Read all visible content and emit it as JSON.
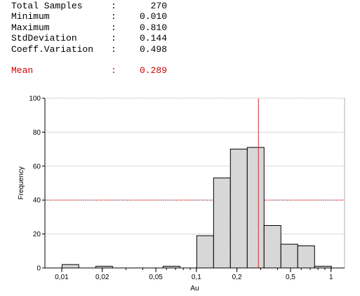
{
  "stats": [
    {
      "label": "Total Samples",
      "colon": ":",
      "value": "270"
    },
    {
      "label": "Minimum",
      "colon": ":",
      "value": "0.010"
    },
    {
      "label": "Maximum",
      "colon": ":",
      "value": "0.810"
    },
    {
      "label": "StdDeviation",
      "colon": ":",
      "value": "0.144"
    },
    {
      "label": "Coeff.Variation",
      "colon": ":",
      "value": "0.498"
    }
  ],
  "mean": {
    "label": "Mean",
    "colon": ":",
    "value": "0.289"
  },
  "colors": {
    "mean": "#d20000",
    "bar_fill": "#e6e6e6",
    "bar_stroke": "#000000",
    "grid": "#b0b0b0",
    "mean_line": "#d03030"
  },
  "chart_data": {
    "type": "bar",
    "xscale": "log",
    "xlabel": "Au",
    "ylabel": "Frequency",
    "ylim": [
      0,
      100
    ],
    "yticks": [
      0,
      20,
      40,
      60,
      80,
      100
    ],
    "xticks": [
      {
        "value": 0.01,
        "label": "0,01"
      },
      {
        "value": 0.02,
        "label": "0,02"
      },
      {
        "value": 0.05,
        "label": "0,05"
      },
      {
        "value": 0.1,
        "label": "0,1"
      },
      {
        "value": 0.2,
        "label": "0,2"
      },
      {
        "value": 0.5,
        "label": "0,5"
      },
      {
        "value": 1,
        "label": "1"
      }
    ],
    "bins": [
      {
        "from": 0.01,
        "to": 0.0133,
        "count": 2
      },
      {
        "from": 0.0133,
        "to": 0.0178,
        "count": 0
      },
      {
        "from": 0.0178,
        "to": 0.0237,
        "count": 1
      },
      {
        "from": 0.0237,
        "to": 0.0316,
        "count": 0
      },
      {
        "from": 0.0316,
        "to": 0.0422,
        "count": 0
      },
      {
        "from": 0.0422,
        "to": 0.0562,
        "count": 0
      },
      {
        "from": 0.0562,
        "to": 0.075,
        "count": 1
      },
      {
        "from": 0.075,
        "to": 0.1,
        "count": 0
      },
      {
        "from": 0.1,
        "to": 0.1334,
        "count": 19
      },
      {
        "from": 0.1334,
        "to": 0.1778,
        "count": 53
      },
      {
        "from": 0.1778,
        "to": 0.2371,
        "count": 70
      },
      {
        "from": 0.2371,
        "to": 0.3162,
        "count": 71
      },
      {
        "from": 0.3162,
        "to": 0.4217,
        "count": 25
      },
      {
        "from": 0.4217,
        "to": 0.5623,
        "count": 14
      },
      {
        "from": 0.5623,
        "to": 0.7499,
        "count": 13
      },
      {
        "from": 0.7499,
        "to": 1.0,
        "count": 1
      }
    ],
    "mean": 0.289,
    "reference_line_y": 40,
    "grid": true
  }
}
